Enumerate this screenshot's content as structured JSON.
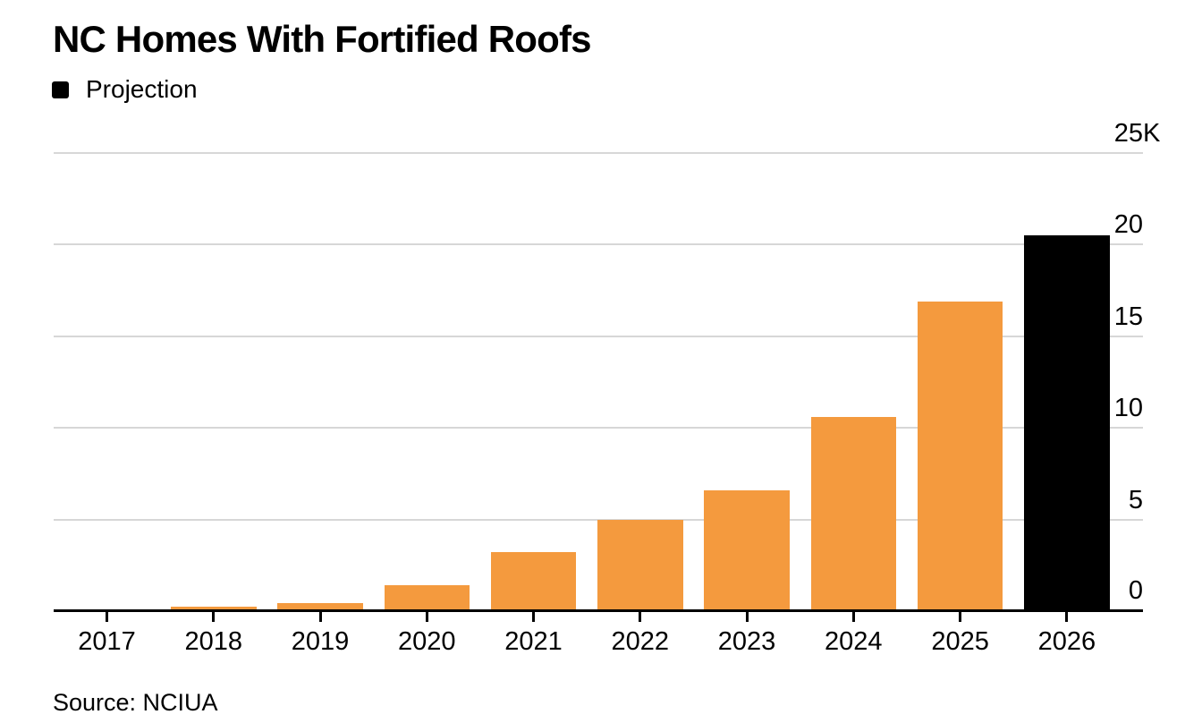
{
  "header": {
    "title": "NC Homes With Fortified Roofs"
  },
  "legend": {
    "items": [
      {
        "label": "Projection",
        "color": "#000000"
      }
    ]
  },
  "source": {
    "text": "Source: NCIUA"
  },
  "colors": {
    "bar": "#F49A3E",
    "projection_bar": "#000000",
    "gridline": "#d7d7d7",
    "axis": "#000000",
    "text": "#000000",
    "background": "#ffffff"
  },
  "chart_data": {
    "type": "bar",
    "title": "NC Homes With Fortified Roofs",
    "categories": [
      "2017",
      "2018",
      "2019",
      "2020",
      "2021",
      "2022",
      "2023",
      "2024",
      "2025",
      "2026"
    ],
    "values": [
      0.07,
      0.25,
      0.45,
      1.4,
      3.2,
      5.0,
      6.6,
      10.6,
      16.9,
      20.5
    ],
    "value_unit": "K",
    "projection_categories": [
      "2026"
    ],
    "xlabel": "",
    "ylabel": "",
    "ylim": [
      0,
      25
    ],
    "yticks": [
      {
        "value": 0,
        "label": "0",
        "suffix": ""
      },
      {
        "value": 5,
        "label": "5",
        "suffix": ""
      },
      {
        "value": 10,
        "label": "10",
        "suffix": ""
      },
      {
        "value": 15,
        "label": "15",
        "suffix": ""
      },
      {
        "value": 20,
        "label": "20",
        "suffix": ""
      },
      {
        "value": 25,
        "label": "25",
        "suffix": "K"
      }
    ],
    "grid": true,
    "axis_side": "right",
    "legend_position": "top-left",
    "legend_entries": [
      "Projection"
    ]
  }
}
